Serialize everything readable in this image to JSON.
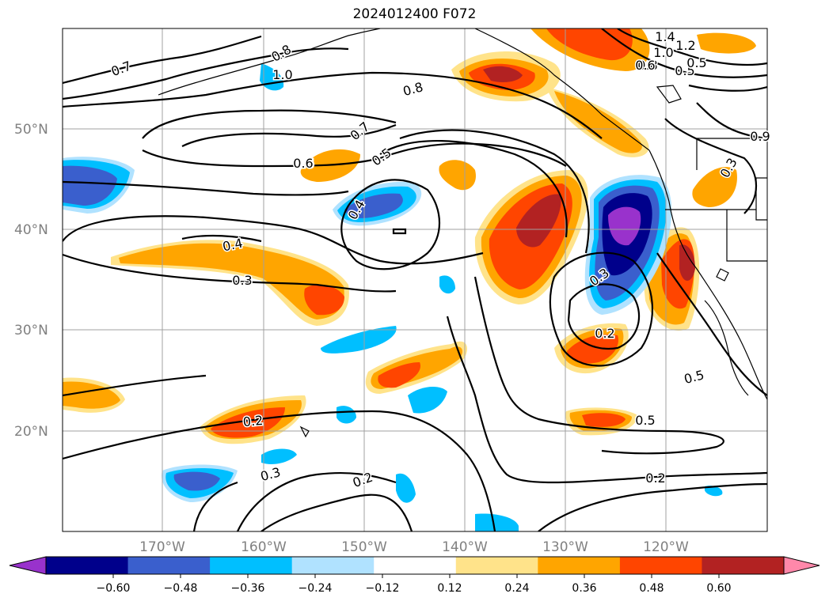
{
  "title": "2024012400 F072",
  "map": {
    "lat_labels": [
      "50°N",
      "40°N",
      "30°N",
      "20°N"
    ],
    "lon_labels": [
      "170°W",
      "160°W",
      "150°W",
      "140°W",
      "130°W",
      "120°W"
    ],
    "grid": true
  },
  "contour_labels": [
    "0.7",
    "0.8",
    "1.0",
    "0.6",
    "0.7",
    "0.5",
    "0.8",
    "1.4",
    "1.2",
    "1.0",
    "0.8",
    "0.6",
    "0.5",
    "0.6",
    "0.4",
    "0.3",
    "0.4",
    "0.3",
    "0.2",
    "0.5",
    "0.2",
    "0.5",
    "0.3",
    "0.2",
    "0.2",
    "0.3",
    "0.5",
    "0.9"
  ],
  "colorbar": {
    "ticks": [
      "−0.60",
      "−0.48",
      "−0.36",
      "−0.24",
      "−0.12",
      "0.12",
      "0.24",
      "0.36",
      "0.48",
      "0.60"
    ],
    "colors": [
      "#9932cc",
      "#00008b",
      "#3a5fcd",
      "#00bfff",
      "#b0e2ff",
      "#ffffff",
      "#ffe38a",
      "#ffa500",
      "#ff4500",
      "#b22222",
      "#ff88aa"
    ]
  }
}
